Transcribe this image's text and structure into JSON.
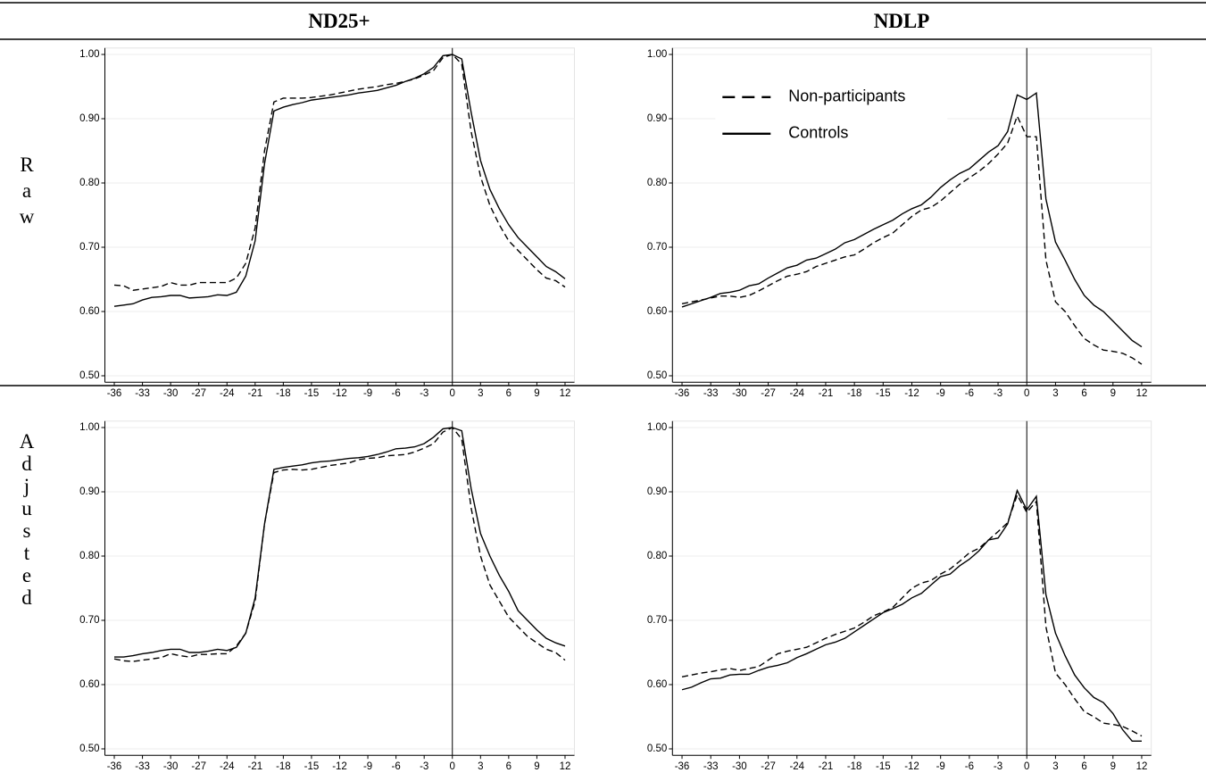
{
  "headers": [
    "ND25+",
    "NDLP"
  ],
  "row_labels": [
    "Raw",
    "Adjusted"
  ],
  "chart_data": [
    {
      "type": "line",
      "x": [
        -36,
        -35,
        -34,
        -33,
        -32,
        -31,
        -30,
        -29,
        -28,
        -27,
        -26,
        -25,
        -24,
        -23,
        -22,
        -21,
        -20,
        -19,
        -18,
        -17,
        -16,
        -15,
        -14,
        -13,
        -12,
        -11,
        -10,
        -9,
        -8,
        -7,
        -6,
        -5,
        -4,
        -3,
        -2,
        -1,
        0,
        1,
        2,
        3,
        4,
        5,
        6,
        7,
        8,
        9,
        10,
        11,
        12
      ],
      "xlim": [
        -37,
        13
      ],
      "xticks": [
        -36,
        -33,
        -30,
        -27,
        -24,
        -21,
        -18,
        -15,
        -12,
        -9,
        -6,
        -3,
        0,
        3,
        6,
        9,
        12
      ],
      "ylim": [
        0.49,
        1.01
      ],
      "yticks": [
        {
          "value": 0.5,
          "label": "0.50"
        },
        {
          "value": 0.6,
          "label": "0.60"
        },
        {
          "value": 0.7,
          "label": "0.70"
        },
        {
          "value": 0.8,
          "label": "0.80"
        },
        {
          "value": 0.9,
          "label": "0.90"
        },
        {
          "value": 1.0,
          "label": "1.00"
        }
      ],
      "grid": true,
      "vline": 0,
      "series": [
        {
          "color": "#000000",
          "dash": true,
          "values": [
            0.641,
            0.64,
            0.633,
            0.635,
            0.637,
            0.639,
            0.645,
            0.641,
            0.641,
            0.645,
            0.645,
            0.645,
            0.645,
            0.652,
            0.675,
            0.73,
            0.85,
            0.926,
            0.932,
            0.932,
            0.932,
            0.933,
            0.935,
            0.937,
            0.94,
            0.943,
            0.946,
            0.948,
            0.95,
            0.953,
            0.955,
            0.958,
            0.962,
            0.968,
            0.975,
            0.995,
            1.0,
            0.985,
            0.88,
            0.81,
            0.765,
            0.735,
            0.71,
            0.695,
            0.68,
            0.665,
            0.652,
            0.648,
            0.638
          ]
        },
        {
          "color": "#000000",
          "dash": false,
          "values": [
            0.608,
            0.61,
            0.612,
            0.618,
            0.622,
            0.623,
            0.625,
            0.625,
            0.621,
            0.622,
            0.623,
            0.626,
            0.625,
            0.63,
            0.655,
            0.71,
            0.83,
            0.912,
            0.918,
            0.922,
            0.925,
            0.929,
            0.931,
            0.933,
            0.935,
            0.937,
            0.94,
            0.942,
            0.944,
            0.948,
            0.952,
            0.958,
            0.963,
            0.97,
            0.98,
            0.998,
            1.0,
            0.993,
            0.91,
            0.835,
            0.79,
            0.76,
            0.735,
            0.715,
            0.7,
            0.685,
            0.67,
            0.662,
            0.651
          ]
        }
      ]
    },
    {
      "type": "line",
      "x": [
        -36,
        -35,
        -34,
        -33,
        -32,
        -31,
        -30,
        -29,
        -28,
        -27,
        -26,
        -25,
        -24,
        -23,
        -22,
        -21,
        -20,
        -19,
        -18,
        -17,
        -16,
        -15,
        -14,
        -13,
        -12,
        -11,
        -10,
        -9,
        -8,
        -7,
        -6,
        -5,
        -4,
        -3,
        -2,
        -1,
        0,
        1,
        2,
        3,
        4,
        5,
        6,
        7,
        8,
        9,
        10,
        11,
        12
      ],
      "xlim": [
        -37,
        13
      ],
      "xticks": [
        -36,
        -33,
        -30,
        -27,
        -24,
        -21,
        -18,
        -15,
        -12,
        -9,
        -6,
        -3,
        0,
        3,
        6,
        9,
        12
      ],
      "ylim": [
        0.49,
        1.01
      ],
      "yticks": [
        {
          "value": 0.5,
          "label": "0.50"
        },
        {
          "value": 0.6,
          "label": "0.60"
        },
        {
          "value": 0.7,
          "label": "0.70"
        },
        {
          "value": 0.8,
          "label": "0.80"
        },
        {
          "value": 0.9,
          "label": "0.90"
        },
        {
          "value": 1.0,
          "label": "1.00"
        }
      ],
      "grid": true,
      "vline": 0,
      "legend": "upper left",
      "series": [
        {
          "name": "Non-participants",
          "color": "#000000",
          "dash": true,
          "values": [
            0.612,
            0.615,
            0.618,
            0.621,
            0.624,
            0.624,
            0.622,
            0.625,
            0.632,
            0.64,
            0.648,
            0.655,
            0.658,
            0.662,
            0.67,
            0.675,
            0.68,
            0.685,
            0.688,
            0.697,
            0.707,
            0.715,
            0.722,
            0.735,
            0.748,
            0.758,
            0.762,
            0.772,
            0.785,
            0.798,
            0.808,
            0.818,
            0.83,
            0.845,
            0.862,
            0.904,
            0.872,
            0.872,
            0.68,
            0.615,
            0.6,
            0.578,
            0.558,
            0.548,
            0.54,
            0.538,
            0.535,
            0.528,
            0.518
          ]
        },
        {
          "name": "Controls",
          "color": "#000000",
          "dash": false,
          "values": [
            0.607,
            0.612,
            0.617,
            0.622,
            0.628,
            0.63,
            0.633,
            0.64,
            0.643,
            0.652,
            0.66,
            0.668,
            0.672,
            0.68,
            0.683,
            0.69,
            0.697,
            0.707,
            0.712,
            0.72,
            0.728,
            0.735,
            0.742,
            0.752,
            0.76,
            0.766,
            0.778,
            0.793,
            0.805,
            0.815,
            0.822,
            0.835,
            0.848,
            0.858,
            0.88,
            0.937,
            0.93,
            0.94,
            0.775,
            0.708,
            0.68,
            0.65,
            0.625,
            0.61,
            0.6,
            0.585,
            0.57,
            0.555,
            0.545
          ]
        }
      ]
    },
    {
      "type": "line",
      "x": [
        -36,
        -35,
        -34,
        -33,
        -32,
        -31,
        -30,
        -29,
        -28,
        -27,
        -26,
        -25,
        -24,
        -23,
        -22,
        -21,
        -20,
        -19,
        -18,
        -17,
        -16,
        -15,
        -14,
        -13,
        -12,
        -11,
        -10,
        -9,
        -8,
        -7,
        -6,
        -5,
        -4,
        -3,
        -2,
        -1,
        0,
        1,
        2,
        3,
        4,
        5,
        6,
        7,
        8,
        9,
        10,
        11,
        12
      ],
      "xlim": [
        -37,
        13
      ],
      "xticks": [
        -36,
        -33,
        -30,
        -27,
        -24,
        -21,
        -18,
        -15,
        -12,
        -9,
        -6,
        -3,
        0,
        3,
        6,
        9,
        12
      ],
      "ylim": [
        0.49,
        1.01
      ],
      "yticks": [
        {
          "value": 0.5,
          "label": "0.50"
        },
        {
          "value": 0.6,
          "label": "0.60"
        },
        {
          "value": 0.7,
          "label": "0.70"
        },
        {
          "value": 0.8,
          "label": "0.80"
        },
        {
          "value": 0.9,
          "label": "0.90"
        },
        {
          "value": 1.0,
          "label": "1.00"
        }
      ],
      "grid": true,
      "vline": 0,
      "series": [
        {
          "color": "#000000",
          "dash": true,
          "values": [
            0.64,
            0.637,
            0.636,
            0.638,
            0.64,
            0.642,
            0.648,
            0.645,
            0.643,
            0.647,
            0.647,
            0.648,
            0.648,
            0.66,
            0.68,
            0.73,
            0.85,
            0.93,
            0.934,
            0.935,
            0.934,
            0.935,
            0.938,
            0.941,
            0.943,
            0.945,
            0.95,
            0.952,
            0.953,
            0.956,
            0.957,
            0.958,
            0.962,
            0.968,
            0.975,
            0.993,
            1.0,
            0.982,
            0.875,
            0.8,
            0.755,
            0.73,
            0.705,
            0.69,
            0.675,
            0.665,
            0.655,
            0.65,
            0.638
          ]
        },
        {
          "color": "#000000",
          "dash": false,
          "values": [
            0.643,
            0.643,
            0.645,
            0.648,
            0.65,
            0.653,
            0.655,
            0.655,
            0.65,
            0.65,
            0.652,
            0.655,
            0.653,
            0.658,
            0.68,
            0.735,
            0.85,
            0.935,
            0.938,
            0.94,
            0.942,
            0.945,
            0.947,
            0.948,
            0.95,
            0.952,
            0.953,
            0.955,
            0.958,
            0.962,
            0.967,
            0.968,
            0.97,
            0.975,
            0.985,
            0.998,
            1.0,
            0.995,
            0.905,
            0.835,
            0.8,
            0.77,
            0.745,
            0.715,
            0.7,
            0.685,
            0.672,
            0.665,
            0.66
          ]
        }
      ]
    },
    {
      "type": "line",
      "x": [
        -36,
        -35,
        -34,
        -33,
        -32,
        -31,
        -30,
        -29,
        -28,
        -27,
        -26,
        -25,
        -24,
        -23,
        -22,
        -21,
        -20,
        -19,
        -18,
        -17,
        -16,
        -15,
        -14,
        -13,
        -12,
        -11,
        -10,
        -9,
        -8,
        -7,
        -6,
        -5,
        -4,
        -3,
        -2,
        -1,
        0,
        1,
        2,
        3,
        4,
        5,
        6,
        7,
        8,
        9,
        10,
        11,
        12
      ],
      "xlim": [
        -37,
        13
      ],
      "xticks": [
        -36,
        -33,
        -30,
        -27,
        -24,
        -21,
        -18,
        -15,
        -12,
        -9,
        -6,
        -3,
        0,
        3,
        6,
        9,
        12
      ],
      "ylim": [
        0.49,
        1.01
      ],
      "yticks": [
        {
          "value": 0.5,
          "label": "0.50"
        },
        {
          "value": 0.6,
          "label": "0.60"
        },
        {
          "value": 0.7,
          "label": "0.70"
        },
        {
          "value": 0.8,
          "label": "0.80"
        },
        {
          "value": 0.9,
          "label": "0.90"
        },
        {
          "value": 1.0,
          "label": "1.00"
        }
      ],
      "grid": true,
      "vline": 0,
      "series": [
        {
          "color": "#000000",
          "dash": true,
          "values": [
            0.612,
            0.615,
            0.618,
            0.62,
            0.623,
            0.625,
            0.622,
            0.625,
            0.628,
            0.638,
            0.648,
            0.652,
            0.655,
            0.658,
            0.665,
            0.672,
            0.678,
            0.683,
            0.688,
            0.697,
            0.707,
            0.713,
            0.72,
            0.735,
            0.75,
            0.758,
            0.762,
            0.772,
            0.78,
            0.792,
            0.805,
            0.812,
            0.825,
            0.838,
            0.852,
            0.895,
            0.868,
            0.885,
            0.69,
            0.618,
            0.6,
            0.578,
            0.558,
            0.55,
            0.54,
            0.538,
            0.535,
            0.528,
            0.52
          ]
        },
        {
          "color": "#000000",
          "dash": false,
          "values": [
            0.592,
            0.596,
            0.603,
            0.609,
            0.61,
            0.615,
            0.616,
            0.616,
            0.622,
            0.627,
            0.63,
            0.634,
            0.642,
            0.648,
            0.655,
            0.662,
            0.666,
            0.672,
            0.682,
            0.692,
            0.702,
            0.712,
            0.718,
            0.725,
            0.735,
            0.742,
            0.755,
            0.768,
            0.772,
            0.785,
            0.795,
            0.808,
            0.825,
            0.828,
            0.85,
            0.902,
            0.872,
            0.893,
            0.74,
            0.68,
            0.645,
            0.615,
            0.595,
            0.58,
            0.572,
            0.555,
            0.53,
            0.512,
            0.512
          ]
        }
      ]
    }
  ]
}
